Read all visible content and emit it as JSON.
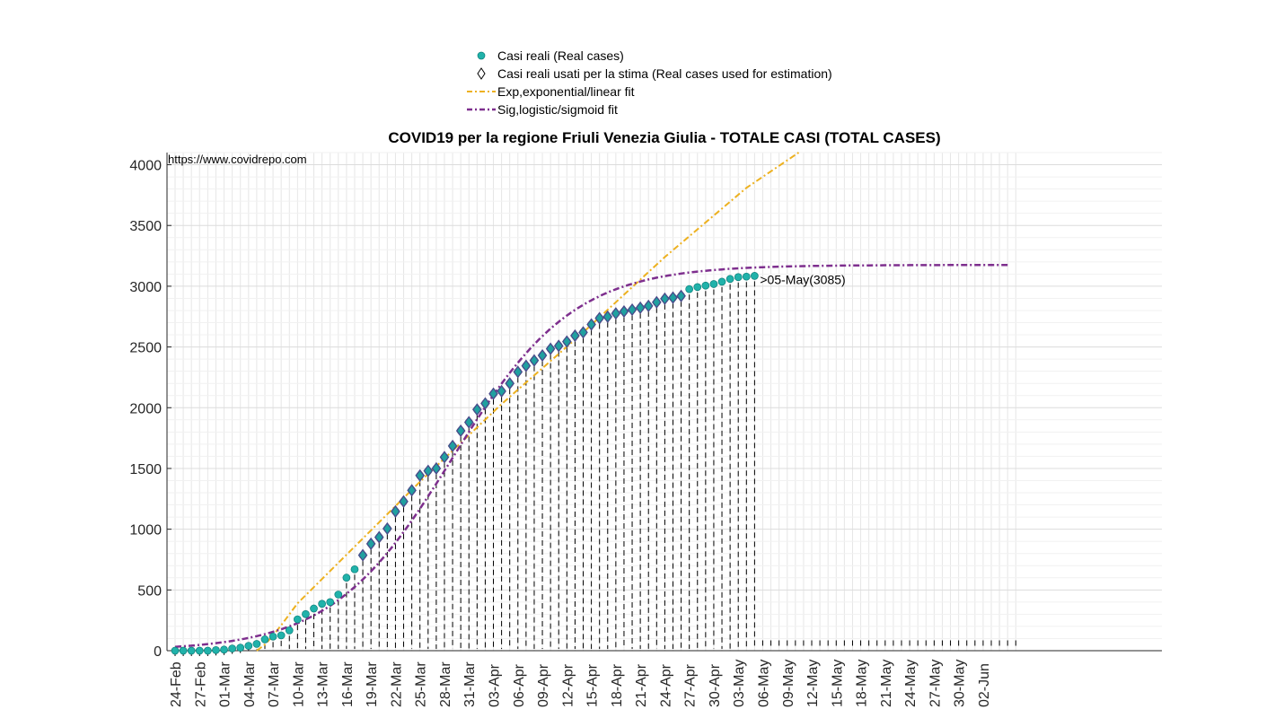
{
  "chart_data": {
    "type": "scatter",
    "title": "COVID19 per la regione Friuli Venezia Giulia - TOTALE CASI (TOTAL CASES)",
    "source_text": "https://www.covidrepo.com",
    "xlabel": "",
    "ylabel": "",
    "ylim": [
      0,
      4100
    ],
    "y_ticks": [
      0,
      500,
      1000,
      1500,
      2000,
      2500,
      3000,
      3500,
      4000
    ],
    "x_tick_labels": [
      "24-Feb",
      "27-Feb",
      "01-Mar",
      "04-Mar",
      "07-Mar",
      "10-Mar",
      "13-Mar",
      "16-Mar",
      "19-Mar",
      "22-Mar",
      "25-Mar",
      "28-Mar",
      "31-Mar",
      "03-Apr",
      "06-Apr",
      "09-Apr",
      "12-Apr",
      "15-Apr",
      "18-Apr",
      "21-Apr",
      "24-Apr",
      "27-Apr",
      "30-Apr",
      "03-May",
      "06-May",
      "09-May",
      "12-May",
      "15-May",
      "18-May",
      "21-May",
      "24-May",
      "27-May",
      "30-May",
      "02-Jun"
    ],
    "x_days_range": [
      0,
      103
    ],
    "grid": true,
    "legend_position": "top",
    "annotation": ">05-May(3085)",
    "annotation_day": 71,
    "annotation_value": 3085,
    "colors": {
      "real": "#20b2aa",
      "used": "#4a4a8a",
      "exp": "#edb120",
      "sig": "#7e2f8e",
      "grid": "#e6e6e6"
    },
    "series": [
      {
        "name": "Casi reali (Real cases)",
        "marker": "circle",
        "values": [
          0,
          0,
          0,
          0,
          0,
          5,
          9,
          18,
          25,
          40,
          56,
          93,
          116,
          126,
          167,
          258,
          301,
          347,
          386,
          400,
          462,
          601,
          670,
          786,
          880,
          934,
          1005,
          1146,
          1228,
          1320,
          1442,
          1480,
          1500,
          1593,
          1685,
          1810,
          1880,
          1985,
          2035,
          2115,
          2136,
          2200,
          2295,
          2345,
          2389,
          2430,
          2485,
          2509,
          2544,
          2593,
          2620,
          2685,
          2737,
          2749,
          2776,
          2792,
          2807,
          2823,
          2838,
          2868,
          2897,
          2906,
          2920,
          2976,
          2993,
          3005,
          3018,
          3037,
          3060,
          3075,
          3079,
          3085
        ]
      },
      {
        "name": "Casi reali usati per la stima (Real cases used for estimation)",
        "marker": "diamond",
        "start_day": 23,
        "values": [
          786,
          880,
          934,
          1005,
          1146,
          1228,
          1320,
          1442,
          1480,
          1500,
          1593,
          1685,
          1810,
          1880,
          1985,
          2035,
          2115,
          2136,
          2200,
          2295,
          2345,
          2389,
          2430,
          2485,
          2509,
          2544,
          2593,
          2620,
          2685,
          2737,
          2749,
          2776,
          2792,
          2807,
          2823,
          2838,
          2868,
          2897,
          2906,
          2920
        ]
      },
      {
        "name": "Exp,exponential/linear fit",
        "style": "dash-dot",
        "x": [
          10,
          11,
          12,
          13,
          14,
          15,
          30,
          40,
          50,
          60,
          70,
          76.4
        ],
        "y": [
          0,
          50,
          125,
          210,
          300,
          390,
          1390,
          2030,
          2620,
          3240,
          3810,
          4100
        ]
      },
      {
        "name": "Sig,logistic/sigmoid fit",
        "style": "dash-dot",
        "logistic": {
          "L": 3175,
          "k": 0.135,
          "x0": 34
        },
        "x_range": [
          0,
          102
        ]
      }
    ]
  }
}
